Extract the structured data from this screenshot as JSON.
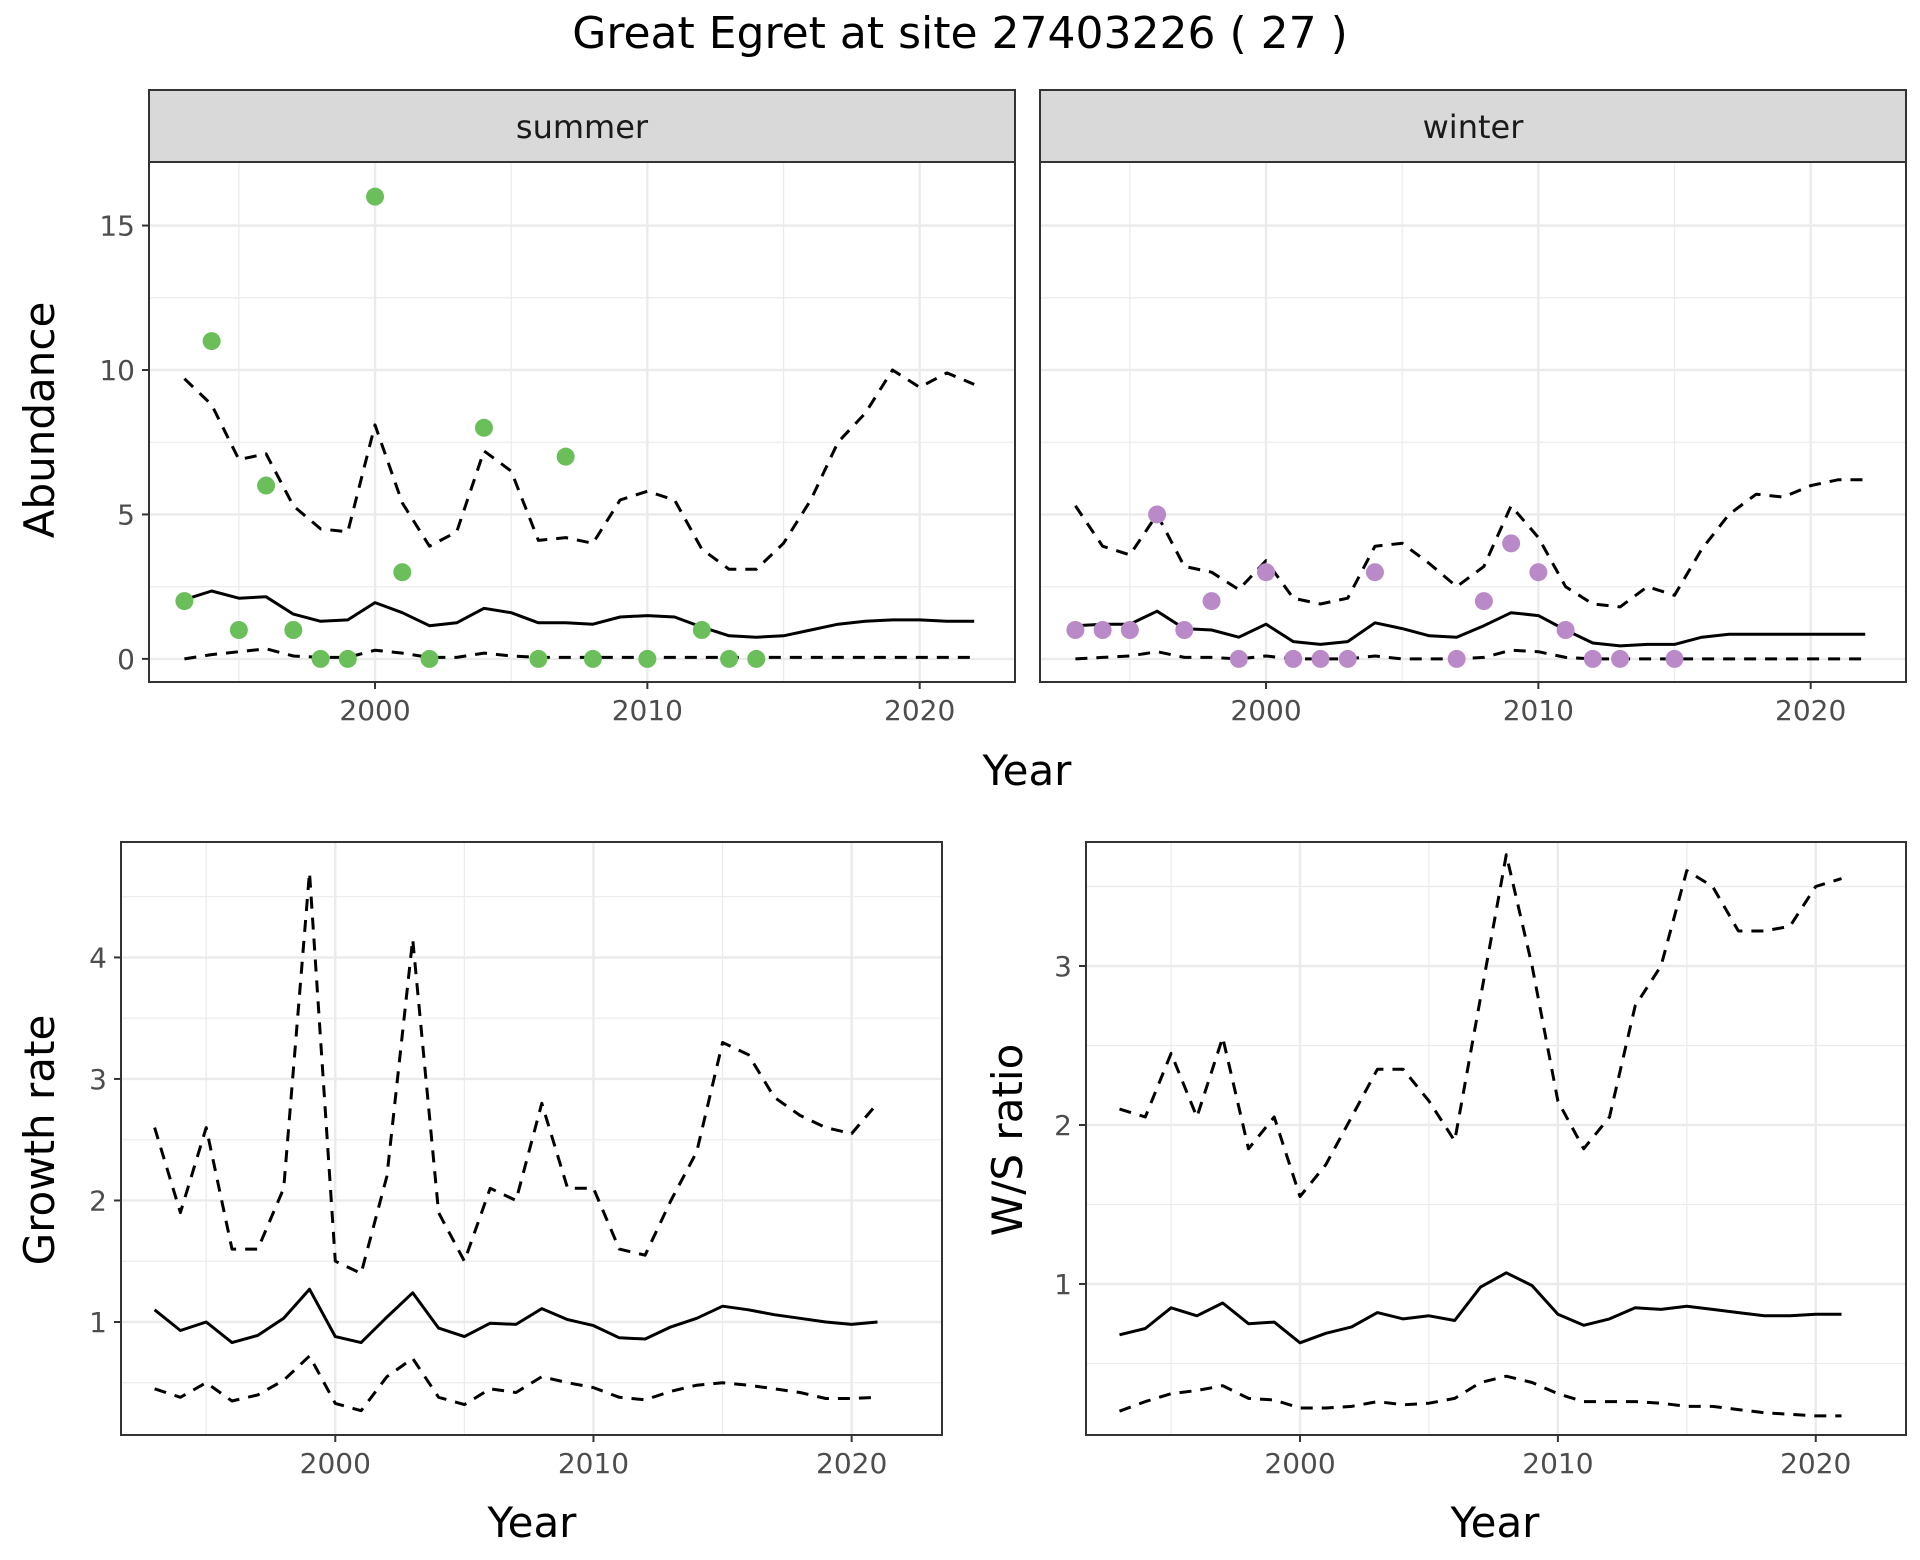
{
  "title": "Great Egret at site 27403226 ( 27 )",
  "colors": {
    "summer_points": "#6abf5a",
    "winter_points": "#b98ac7"
  },
  "chart_data": [
    {
      "id": "abundance",
      "type": "line",
      "facets": [
        "summer",
        "winter"
      ],
      "xlabel": "Year",
      "ylabel": "Abundance",
      "xlim": [
        1991.7,
        2023.5
      ],
      "ylim": [
        -0.8,
        17.2
      ],
      "x_ticks": [
        2000,
        2010,
        2020
      ],
      "y_ticks": [
        0,
        5,
        10,
        15
      ],
      "grid": true,
      "panels": [
        {
          "name": "summer",
          "x": [
            1993,
            1994,
            1995,
            1996,
            1997,
            1998,
            1999,
            2000,
            2001,
            2002,
            2003,
            2004,
            2005,
            2006,
            2007,
            2008,
            2009,
            2010,
            2011,
            2012,
            2013,
            2014,
            2015,
            2016,
            2017,
            2018,
            2019,
            2020,
            2021,
            2022
          ],
          "series": [
            {
              "style": "dashed",
              "values": [
                9.7,
                8.8,
                6.9,
                7.1,
                5.3,
                4.5,
                4.4,
                8.1,
                5.4,
                3.9,
                4.4,
                7.2,
                6.5,
                4.1,
                4.2,
                4.0,
                5.5,
                5.8,
                5.5,
                3.8,
                3.1,
                3.1,
                4.0,
                5.5,
                7.5,
                8.5,
                10.0,
                9.4,
                9.9,
                9.5
              ]
            },
            {
              "style": "solid",
              "values": [
                2.05,
                2.35,
                2.1,
                2.15,
                1.55,
                1.3,
                1.35,
                1.95,
                1.6,
                1.15,
                1.25,
                1.75,
                1.6,
                1.25,
                1.25,
                1.2,
                1.45,
                1.5,
                1.45,
                1.1,
                0.8,
                0.75,
                0.8,
                1.0,
                1.2,
                1.3,
                1.35,
                1.35,
                1.3,
                1.3
              ]
            },
            {
              "style": "dashed",
              "values": [
                0.0,
                0.15,
                0.25,
                0.35,
                0.1,
                0.05,
                0.05,
                0.3,
                0.2,
                0.05,
                0.05,
                0.2,
                0.1,
                0.05,
                0.05,
                0.05,
                0.05,
                0.05,
                0.05,
                0.05,
                0.05,
                0.05,
                0.05,
                0.05,
                0.05,
                0.05,
                0.05,
                0.05,
                0.05,
                0.05
              ]
            }
          ],
          "points": {
            "x": [
              1993,
              1994,
              1995,
              1996,
              1997,
              1998,
              1999,
              2000,
              2001,
              2002,
              2004,
              2006,
              2007,
              2008,
              2010,
              2012,
              2013,
              2014
            ],
            "y": [
              2,
              11,
              1,
              6,
              1,
              0,
              0,
              16,
              3,
              0,
              8,
              0,
              7,
              0,
              0,
              1,
              0,
              0
            ]
          }
        },
        {
          "name": "winter",
          "x": [
            1993,
            1994,
            1995,
            1996,
            1997,
            1998,
            1999,
            2000,
            2001,
            2002,
            2003,
            2004,
            2005,
            2006,
            2007,
            2008,
            2009,
            2010,
            2011,
            2012,
            2013,
            2014,
            2015,
            2016,
            2017,
            2018,
            2019,
            2020,
            2021,
            2022
          ],
          "series": [
            {
              "style": "dashed",
              "values": [
                5.3,
                3.9,
                3.6,
                5.0,
                3.2,
                3.0,
                2.4,
                3.4,
                2.1,
                1.9,
                2.1,
                3.9,
                4.0,
                3.3,
                2.5,
                3.2,
                5.3,
                4.2,
                2.5,
                1.9,
                1.8,
                2.5,
                2.2,
                3.8,
                5.0,
                5.7,
                5.6,
                6.0,
                6.2,
                6.2
              ]
            },
            {
              "style": "solid",
              "values": [
                1.15,
                1.2,
                1.2,
                1.65,
                1.05,
                1.0,
                0.75,
                1.2,
                0.6,
                0.5,
                0.6,
                1.25,
                1.05,
                0.8,
                0.75,
                1.15,
                1.6,
                1.5,
                1.0,
                0.55,
                0.45,
                0.5,
                0.5,
                0.75,
                0.85,
                0.85,
                0.85,
                0.85,
                0.85,
                0.85
              ]
            },
            {
              "style": "dashed",
              "values": [
                0.0,
                0.05,
                0.1,
                0.25,
                0.05,
                0.05,
                0.0,
                0.1,
                0.0,
                0.0,
                0.0,
                0.1,
                0.0,
                0.0,
                0.0,
                0.05,
                0.3,
                0.25,
                0.05,
                0.0,
                0.0,
                0.0,
                0.0,
                0.0,
                0.0,
                0.0,
                0.0,
                0.0,
                0.0,
                0.0
              ]
            }
          ],
          "points": {
            "x": [
              1993,
              1994,
              1995,
              1996,
              1997,
              1998,
              1999,
              2000,
              2001,
              2002,
              2003,
              2004,
              2007,
              2008,
              2009,
              2010,
              2011,
              2012,
              2013,
              2015
            ],
            "y": [
              1,
              1,
              1,
              5,
              1,
              2,
              0,
              3,
              0,
              0,
              0,
              3,
              0,
              2,
              4,
              3,
              1,
              0,
              0,
              0
            ]
          }
        }
      ]
    },
    {
      "id": "growth",
      "type": "line",
      "xlabel": "Year",
      "ylabel": "Growth rate",
      "xlim": [
        1991.7,
        2023.5
      ],
      "ylim": [
        0.07,
        4.95
      ],
      "x_ticks": [
        2000,
        2010,
        2020
      ],
      "y_ticks": [
        1,
        2,
        3,
        4
      ],
      "grid": true,
      "x": [
        1993,
        1994,
        1995,
        1996,
        1997,
        1998,
        1999,
        2000,
        2001,
        2002,
        2003,
        2004,
        2005,
        2006,
        2007,
        2008,
        2009,
        2010,
        2011,
        2012,
        2013,
        2014,
        2015,
        2016,
        2017,
        2018,
        2019,
        2020,
        2021
      ],
      "series": [
        {
          "style": "dashed",
          "values": [
            2.6,
            1.9,
            2.6,
            1.6,
            1.6,
            2.1,
            4.7,
            1.5,
            1.4,
            2.2,
            4.15,
            1.9,
            1.5,
            2.1,
            2.0,
            2.8,
            2.1,
            2.1,
            1.6,
            1.55,
            2.0,
            2.4,
            3.3,
            3.2,
            2.85,
            2.7,
            2.6,
            2.55,
            2.8
          ]
        },
        {
          "style": "solid",
          "values": [
            1.1,
            0.93,
            1.0,
            0.83,
            0.89,
            1.03,
            1.27,
            0.88,
            0.83,
            1.04,
            1.24,
            0.95,
            0.88,
            0.99,
            0.98,
            1.11,
            1.02,
            0.97,
            0.87,
            0.86,
            0.96,
            1.03,
            1.13,
            1.1,
            1.06,
            1.03,
            1.0,
            0.98,
            1.0
          ]
        },
        {
          "style": "dashed",
          "values": [
            0.45,
            0.38,
            0.5,
            0.35,
            0.4,
            0.52,
            0.72,
            0.33,
            0.27,
            0.55,
            0.7,
            0.38,
            0.32,
            0.45,
            0.42,
            0.55,
            0.5,
            0.46,
            0.38,
            0.36,
            0.43,
            0.48,
            0.5,
            0.48,
            0.45,
            0.42,
            0.37,
            0.37,
            0.38
          ]
        }
      ]
    },
    {
      "id": "ratio",
      "type": "line",
      "xlabel": "Year",
      "ylabel": "W/S ratio",
      "xlim": [
        1991.7,
        2023.5
      ],
      "ylim": [
        0.05,
        3.78
      ],
      "x_ticks": [
        2000,
        2010,
        2020
      ],
      "y_ticks": [
        1,
        2,
        3
      ],
      "grid": true,
      "x": [
        1993,
        1994,
        1995,
        1996,
        1997,
        1998,
        1999,
        2000,
        2001,
        2002,
        2003,
        2004,
        2005,
        2006,
        2007,
        2008,
        2009,
        2010,
        2011,
        2012,
        2013,
        2014,
        2015,
        2016,
        2017,
        2018,
        2019,
        2020,
        2021
      ],
      "series": [
        {
          "style": "dashed",
          "values": [
            2.1,
            2.05,
            2.45,
            2.05,
            2.55,
            1.85,
            2.05,
            1.55,
            1.75,
            2.05,
            2.35,
            2.35,
            2.15,
            1.9,
            2.8,
            3.7,
            3.0,
            2.15,
            1.85,
            2.05,
            2.75,
            3.0,
            3.6,
            3.5,
            3.22,
            3.22,
            3.25,
            3.5,
            3.55
          ]
        },
        {
          "style": "solid",
          "values": [
            0.68,
            0.72,
            0.85,
            0.8,
            0.88,
            0.75,
            0.76,
            0.63,
            0.69,
            0.73,
            0.82,
            0.78,
            0.8,
            0.77,
            0.98,
            1.07,
            0.99,
            0.81,
            0.74,
            0.78,
            0.85,
            0.84,
            0.86,
            0.84,
            0.82,
            0.8,
            0.8,
            0.81,
            0.81
          ]
        },
        {
          "style": "dashed",
          "values": [
            0.2,
            0.26,
            0.31,
            0.33,
            0.36,
            0.28,
            0.27,
            0.22,
            0.22,
            0.23,
            0.26,
            0.24,
            0.25,
            0.28,
            0.38,
            0.42,
            0.38,
            0.31,
            0.26,
            0.26,
            0.26,
            0.25,
            0.23,
            0.23,
            0.21,
            0.19,
            0.18,
            0.17,
            0.17
          ]
        }
      ]
    }
  ]
}
